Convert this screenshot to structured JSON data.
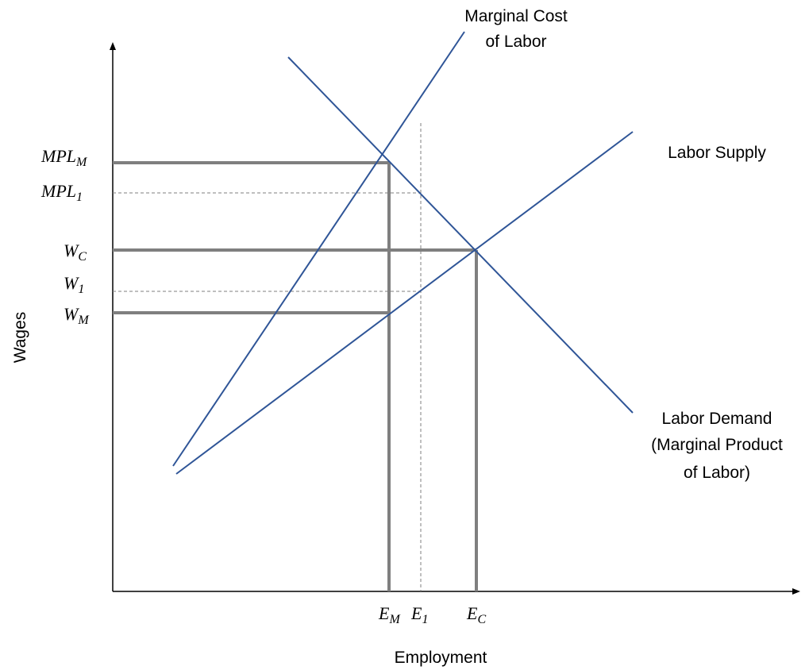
{
  "diagram": {
    "axes": {
      "y_label": "Wages",
      "x_label": "Employment"
    },
    "curves": {
      "marginal_cost": [
        "Marginal Cost",
        "of Labor"
      ],
      "labor_supply": [
        "Labor Supply"
      ],
      "labor_demand": [
        "Labor Demand",
        "(Marginal Product",
        "of Labor)"
      ]
    },
    "y_ticks": [
      {
        "base": "MPL",
        "sub": "M"
      },
      {
        "base": "MPL",
        "sub": "1"
      },
      {
        "base": "W",
        "sub": "C"
      },
      {
        "base": "W",
        "sub": "1"
      },
      {
        "base": "W",
        "sub": "M"
      }
    ],
    "x_ticks": [
      {
        "base": "E",
        "sub": "M"
      },
      {
        "base": "E",
        "sub": "1"
      },
      {
        "base": "E",
        "sub": "C"
      }
    ]
  }
}
